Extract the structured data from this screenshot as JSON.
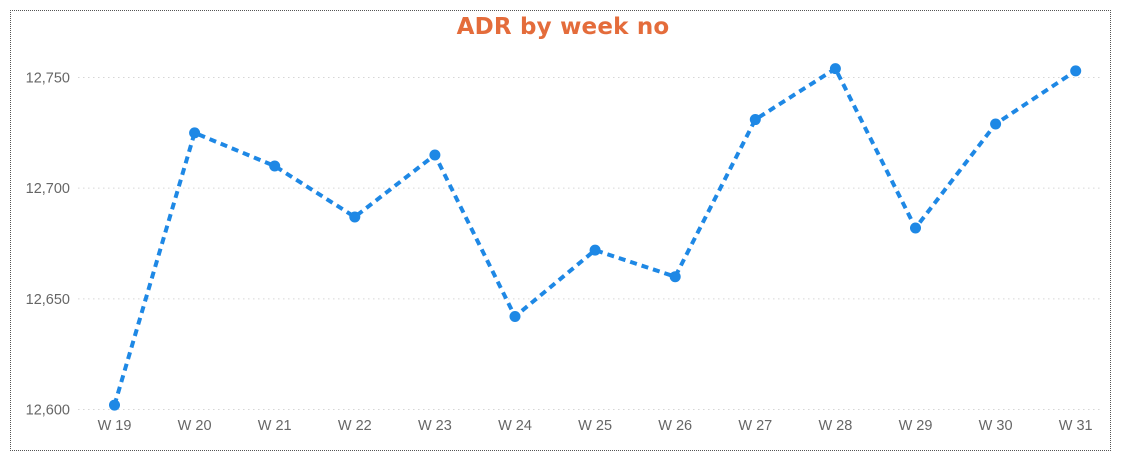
{
  "chart_data": {
    "type": "line",
    "title": "ADR by week no",
    "categories": [
      "W 19",
      "W 20",
      "W 21",
      "W 22",
      "W 23",
      "W 24",
      "W 25",
      "W 26",
      "W 27",
      "W 28",
      "W 29",
      "W 30",
      "W 31"
    ],
    "series": [
      {
        "values": [
          12602,
          12725,
          12710,
          12687,
          12715,
          12642,
          12672,
          12660,
          12731,
          12754,
          12682,
          12729,
          12753
        ]
      }
    ],
    "yticks": [
      12600,
      12650,
      12700,
      12750
    ],
    "ytick_labels": [
      "12,600",
      "12,650",
      "12,700",
      "12,750"
    ],
    "ylim": [
      12600,
      12750
    ],
    "grid": true,
    "line_style": "dashed",
    "colors": {
      "line": "#1E88E5",
      "title": "#E46C3B",
      "grid": "#D6D6D6"
    }
  }
}
